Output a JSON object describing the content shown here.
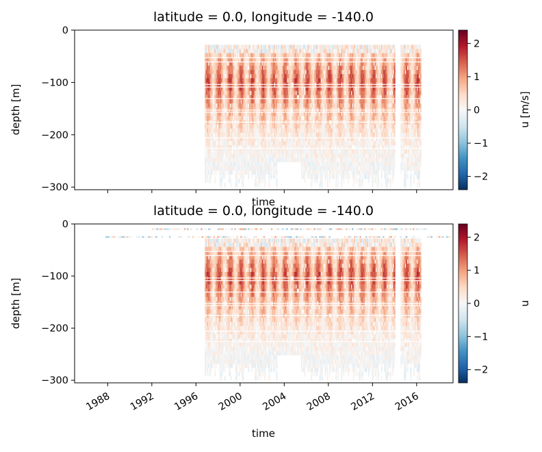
{
  "chart_data": [
    {
      "type": "heatmap",
      "title": "latitude = 0.0, longitude = -140.0",
      "xlabel": "time",
      "ylabel": "depth [m]",
      "ylim": [
        -305,
        0
      ],
      "yticks": [
        "0",
        "−100",
        "−200",
        "−300"
      ],
      "ytick_values": [
        0,
        -100,
        -200,
        -300
      ],
      "xtick_years": [
        1988,
        1992,
        1996,
        2000,
        2004,
        2008,
        2012,
        2016
      ],
      "xtick_labels_visible": false,
      "colorbar": {
        "label": "u [m/s]",
        "range": [
          -2.4,
          2.4
        ],
        "ticks": [
          "2",
          "1",
          "0",
          "−1",
          "−2"
        ],
        "tick_values": [
          2,
          1,
          0,
          -1,
          -2
        ],
        "colormap": "RdBu_r"
      },
      "data_extent": {
        "start_year": 1996.8,
        "end_year": 2016.4,
        "gap_years": [
          2014.0,
          2014.5
        ]
      },
      "velocity_profile": [
        {
          "depth": -25,
          "u": 0.4
        },
        {
          "depth": -60,
          "u": 1.0
        },
        {
          "depth": -90,
          "u": 1.4
        },
        {
          "depth": -110,
          "u": 1.3
        },
        {
          "depth": -150,
          "u": 0.8
        },
        {
          "depth": -200,
          "u": 0.3
        },
        {
          "depth": -250,
          "u": 0.0
        },
        {
          "depth": -300,
          "u": -0.1
        }
      ]
    },
    {
      "type": "heatmap",
      "title": "latitude = 0.0, longitude = -140.0",
      "xlabel": "time",
      "ylabel": "depth [m]",
      "ylim": [
        -305,
        0
      ],
      "yticks": [
        "0",
        "−100",
        "−200",
        "−300"
      ],
      "ytick_values": [
        0,
        -100,
        -200,
        -300
      ],
      "xtick_years": [
        1988,
        1992,
        1996,
        2000,
        2004,
        2008,
        2012,
        2016
      ],
      "xtick_labels": [
        "1988",
        "1992",
        "1996",
        "2000",
        "2004",
        "2008",
        "2012",
        "2016"
      ],
      "xtick_labels_visible": true,
      "colorbar": {
        "label": "u",
        "range": [
          -2.4,
          2.4
        ],
        "ticks": [
          "2",
          "1",
          "0",
          "−1",
          "−2"
        ],
        "tick_values": [
          2,
          1,
          0,
          -1,
          -2
        ],
        "colormap": "RdBu_r"
      },
      "data_extent": {
        "start_year": 1996.8,
        "end_year": 2016.4,
        "gap_years": [
          2014.0,
          2014.5
        ]
      },
      "extra_shallow_rows": [
        {
          "depth": -10,
          "from_year": 1992.0,
          "to_year": 2016.9
        },
        {
          "depth": -25,
          "from_year": 1987.8,
          "to_year": 2019.2
        }
      ]
    }
  ]
}
